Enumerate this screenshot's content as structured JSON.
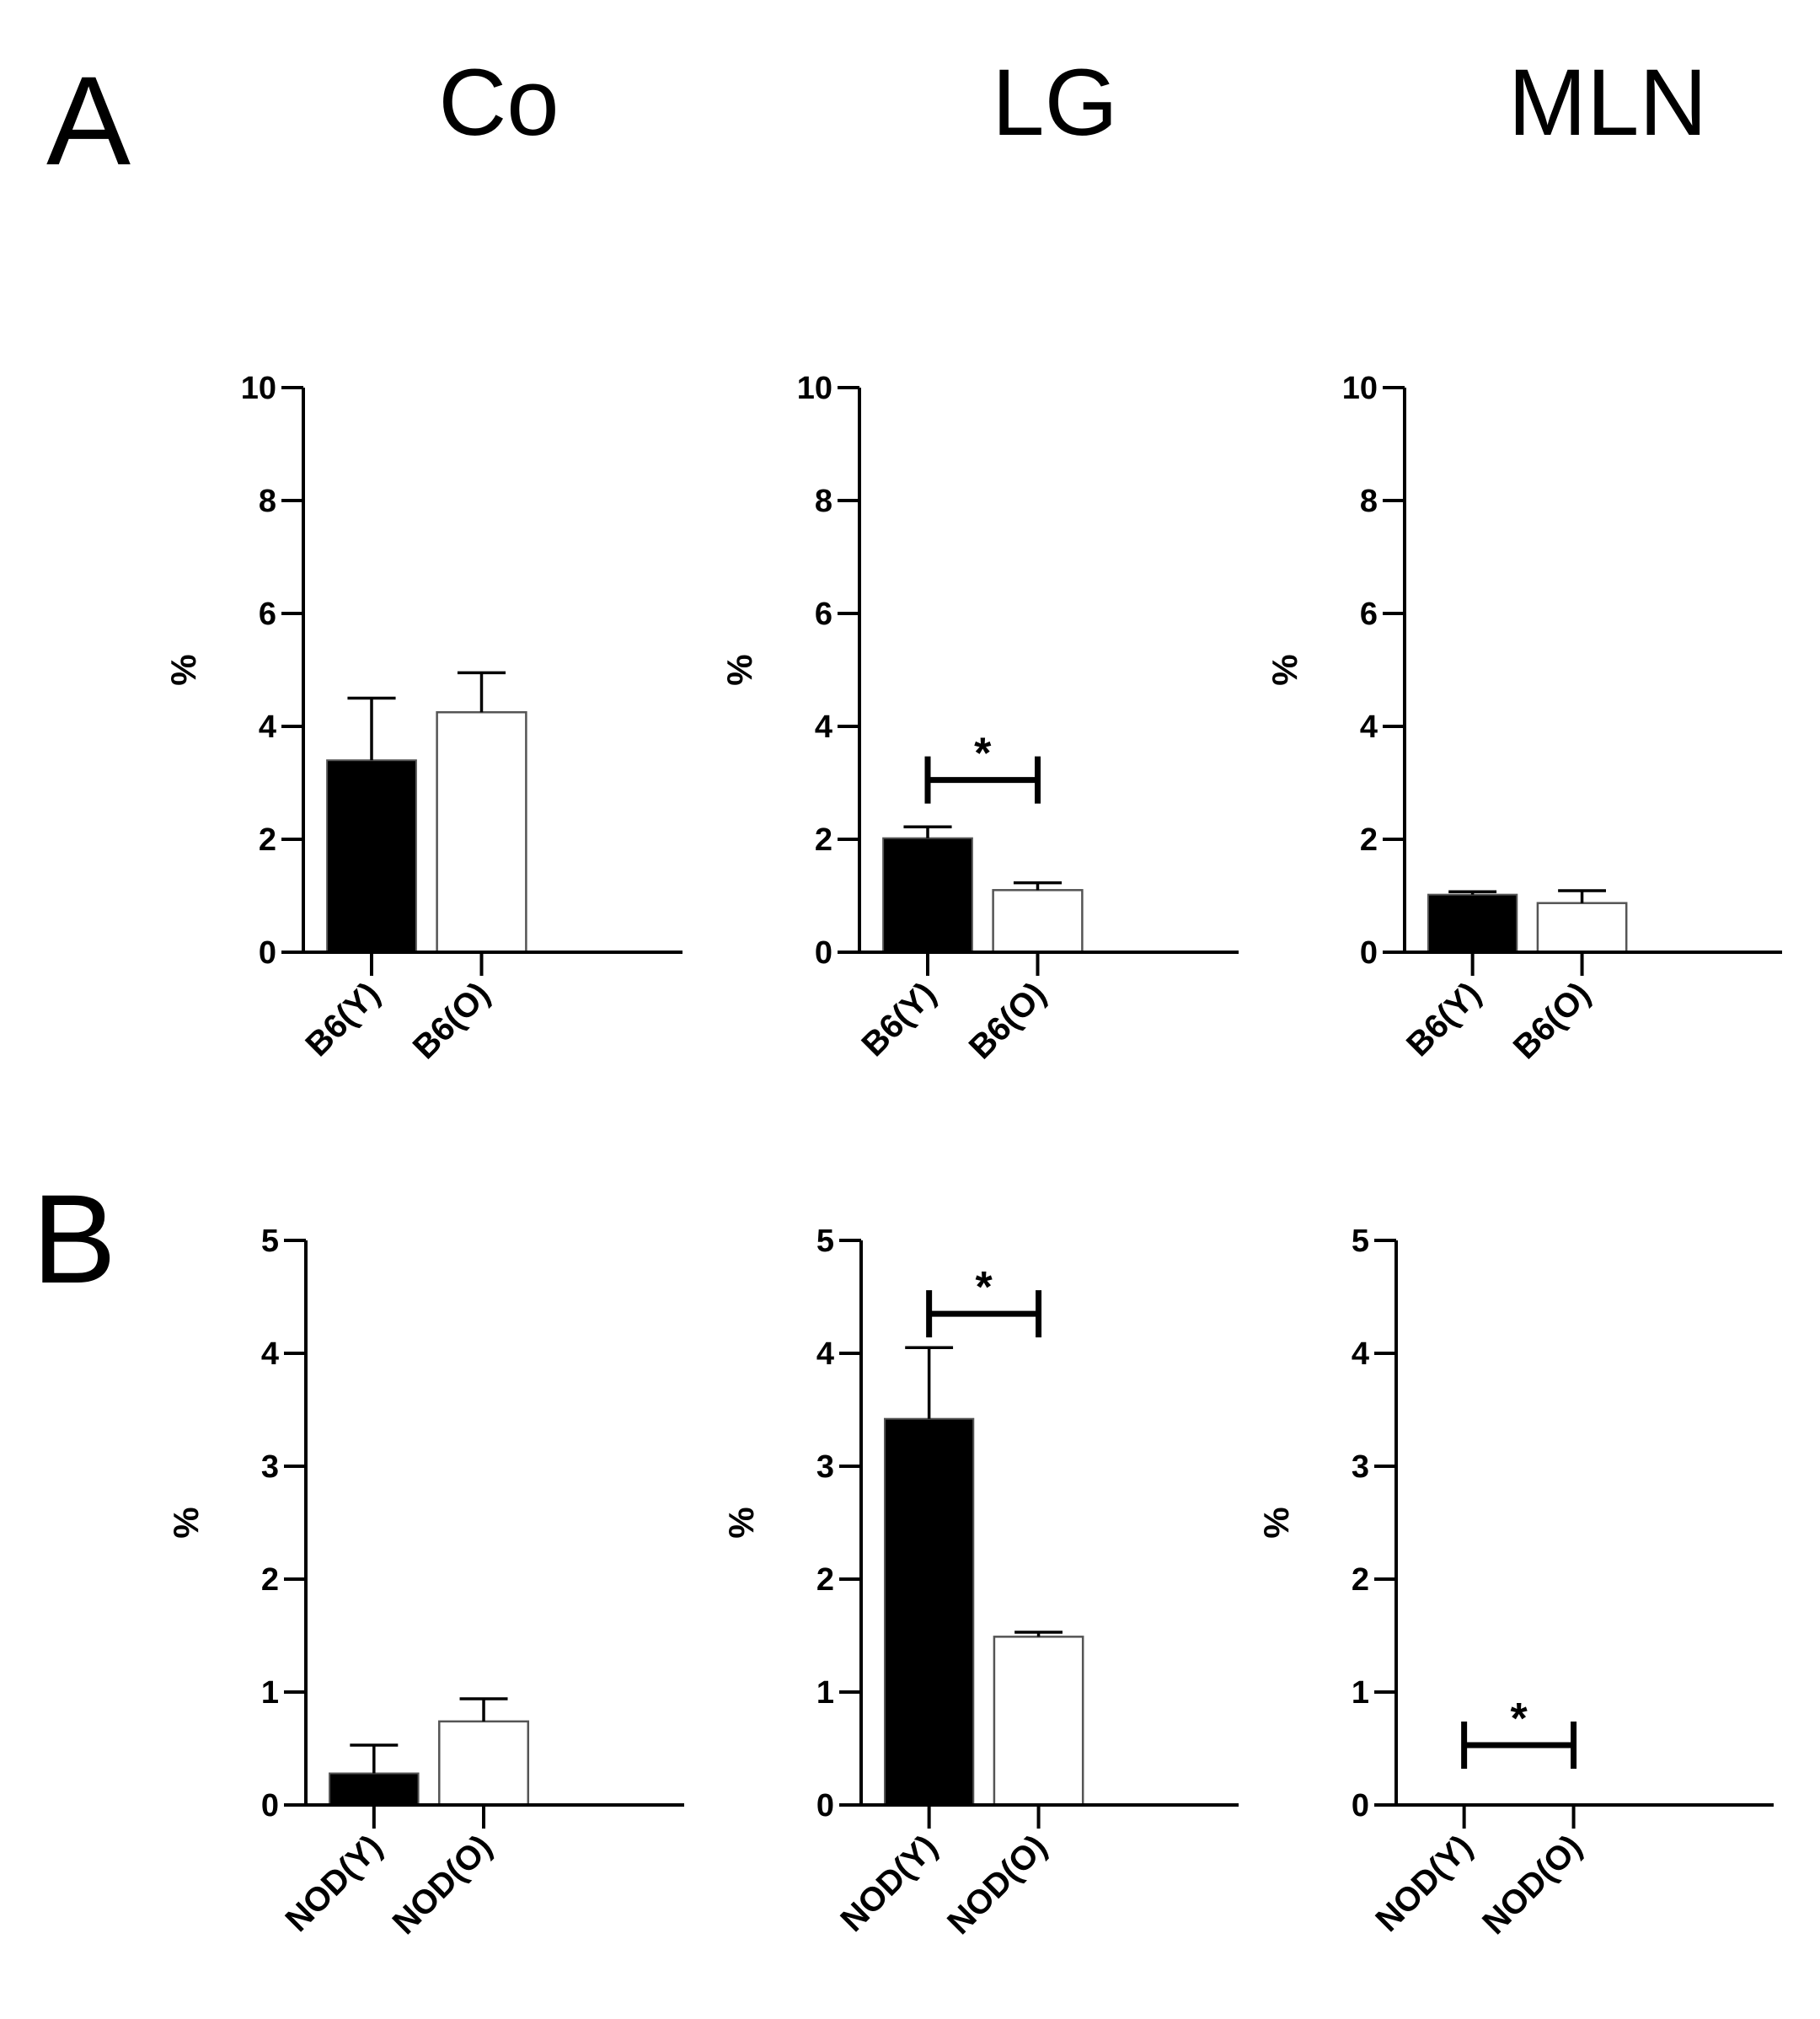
{
  "panels": {
    "a": "A",
    "b": "B"
  },
  "column_titles": [
    "Co",
    "LG",
    "MLN"
  ],
  "colors": {
    "filled": "#000000",
    "open": "#ffffff",
    "axis": "#000000",
    "bar_edge": "#555555"
  },
  "chart_data": [
    {
      "type": "bar",
      "row": "A",
      "title": "Co",
      "ylabel": "%",
      "ylim": [
        0,
        10
      ],
      "yticks": [
        "0",
        "2",
        "4",
        "6",
        "8",
        "10"
      ],
      "categories": [
        "B6(Y)",
        "B6(O)"
      ],
      "values": [
        3.4,
        4.25
      ],
      "errors": [
        1.1,
        0.7
      ],
      "significance": null
    },
    {
      "type": "bar",
      "row": "A",
      "title": "LG",
      "ylabel": "%",
      "ylim": [
        0,
        10
      ],
      "yticks": [
        "0",
        "2",
        "4",
        "6",
        "8",
        "10"
      ],
      "categories": [
        "B6(Y)",
        "B6(O)"
      ],
      "values": [
        2.02,
        1.1
      ],
      "errors": [
        0.2,
        0.13
      ],
      "significance": {
        "label": "*",
        "y": 3.05
      }
    },
    {
      "type": "bar",
      "row": "A",
      "title": "MLN",
      "ylabel": "%",
      "ylim": [
        0,
        10
      ],
      "yticks": [
        "0",
        "2",
        "4",
        "6",
        "8",
        "10"
      ],
      "categories": [
        "B6(Y)",
        "B6(O)"
      ],
      "values": [
        1.02,
        0.87
      ],
      "errors": [
        0.05,
        0.22
      ],
      "significance": null
    },
    {
      "type": "bar",
      "row": "B",
      "title": "Co",
      "ylabel": "%",
      "ylim": [
        0,
        5
      ],
      "yticks": [
        "0",
        "1",
        "2",
        "3",
        "4",
        "5"
      ],
      "categories": [
        "NOD(Y)",
        "NOD(O)"
      ],
      "values": [
        0.28,
        0.74
      ],
      "errors": [
        0.25,
        0.2
      ],
      "significance": null
    },
    {
      "type": "bar",
      "row": "B",
      "title": "LG",
      "ylabel": "%",
      "ylim": [
        0,
        5
      ],
      "yticks": [
        "0",
        "1",
        "2",
        "3",
        "4",
        "5"
      ],
      "categories": [
        "NOD(Y)",
        "NOD(O)"
      ],
      "values": [
        3.42,
        1.49
      ],
      "errors": [
        0.63,
        0.04
      ],
      "significance": {
        "label": "*",
        "y": 4.35
      }
    },
    {
      "type": "bar",
      "row": "B",
      "title": "MLN",
      "ylabel": "%",
      "ylim": [
        0,
        5
      ],
      "yticks": [
        "0",
        "1",
        "2",
        "3",
        "4",
        "5"
      ],
      "categories": [
        "NOD(Y)",
        "NOD(O)"
      ],
      "values": [
        0,
        0
      ],
      "errors": [
        0,
        0
      ],
      "significance": {
        "label": "*",
        "y": 0.53
      }
    }
  ]
}
